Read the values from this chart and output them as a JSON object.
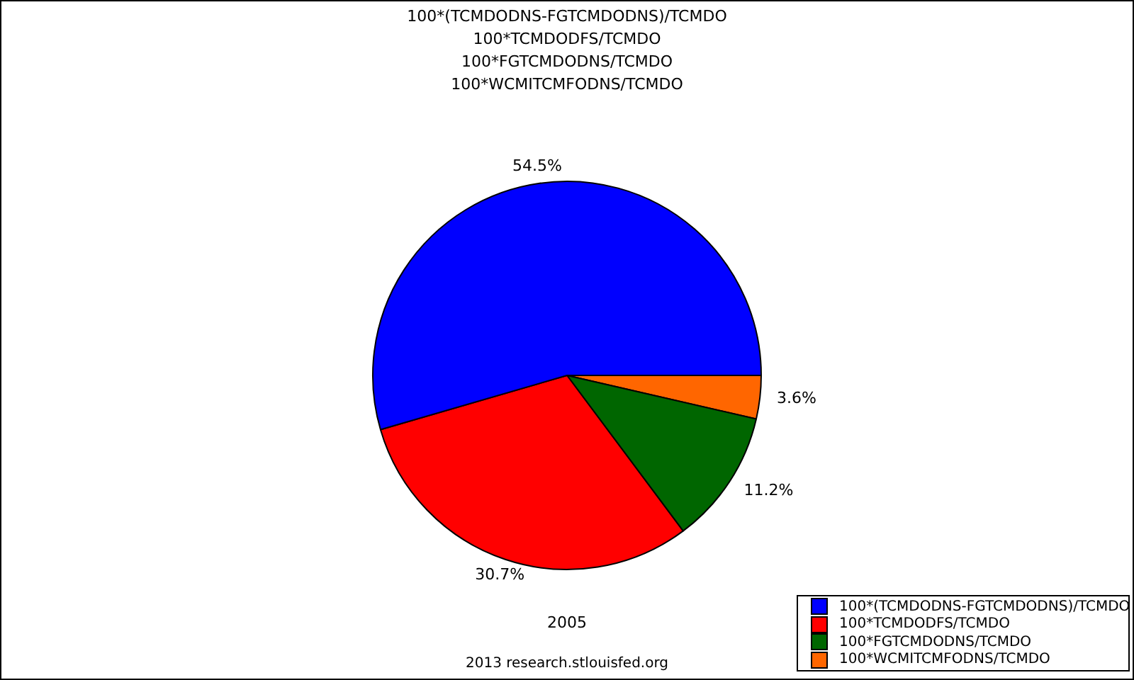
{
  "chart_data": {
    "type": "pie",
    "title": "100*(TCMDODNS-FGTCMDODNS)/TCMDO\n100*TCMDODFS/TCMDO\n100*FGTCMDODNS/TCMDO\n100*WCMITCMFODNS/TCMDO",
    "categories": [
      "100*(TCMDODNS-FGTCMDODNS)/TCMDO",
      "100*TCMDODFS/TCMDO",
      "100*FGTCMDODNS/TCMDO",
      "100*WCMITCMFODNS/TCMDO"
    ],
    "values": [
      54.5,
      30.7,
      11.2,
      3.6
    ],
    "colors": [
      "#0000ff",
      "#ff0000",
      "#006600",
      "#ff6600"
    ],
    "value_labels": [
      "54.5%",
      "30.7%",
      "11.2%",
      "3.6%"
    ],
    "legend": "bottom right",
    "annotations": [
      "2005",
      "2013 research.stlouisfed.org"
    ]
  }
}
